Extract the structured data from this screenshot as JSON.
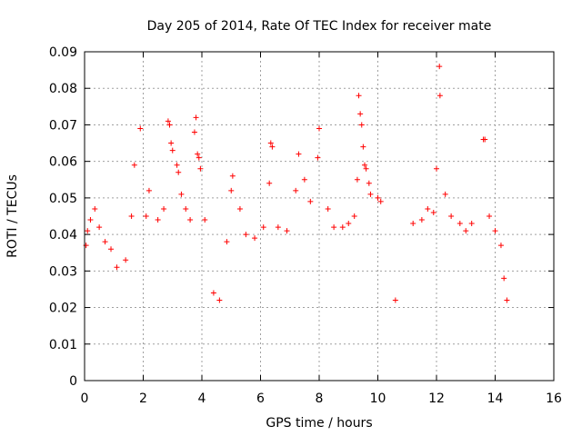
{
  "chart_data": {
    "type": "scatter",
    "title": "Day 205 of 2014, Rate Of TEC Index for receiver mate",
    "xlabel": "GPS time / hours",
    "ylabel": "ROTI / TECUs",
    "xlim": [
      0,
      16
    ],
    "ylim": [
      0,
      0.09
    ],
    "x_ticks": [
      0,
      2,
      4,
      6,
      8,
      10,
      12,
      14,
      16
    ],
    "x_tick_labels": [
      "0",
      "2",
      "4",
      "6",
      "8",
      "10",
      "12",
      "14",
      "16"
    ],
    "y_ticks": [
      0,
      0.01,
      0.02,
      0.03,
      0.04,
      0.05,
      0.06,
      0.07,
      0.08,
      0.09
    ],
    "y_tick_labels": [
      "0",
      "0.01",
      "0.02",
      "0.03",
      "0.04",
      "0.05",
      "0.06",
      "0.07",
      "0.08",
      "0.09"
    ],
    "grid": true,
    "marker": "+",
    "color": "#ff0000",
    "series": [
      {
        "name": "ROTI",
        "points": [
          [
            0.05,
            0.037
          ],
          [
            0.1,
            0.041
          ],
          [
            0.2,
            0.044
          ],
          [
            0.35,
            0.047
          ],
          [
            0.5,
            0.042
          ],
          [
            0.7,
            0.038
          ],
          [
            0.9,
            0.036
          ],
          [
            1.1,
            0.031
          ],
          [
            1.4,
            0.033
          ],
          [
            1.6,
            0.045
          ],
          [
            1.7,
            0.059
          ],
          [
            1.9,
            0.069
          ],
          [
            2.1,
            0.045
          ],
          [
            2.2,
            0.052
          ],
          [
            2.5,
            0.044
          ],
          [
            2.7,
            0.047
          ],
          [
            2.85,
            0.071
          ],
          [
            2.9,
            0.07
          ],
          [
            2.95,
            0.065
          ],
          [
            3.0,
            0.063
          ],
          [
            3.15,
            0.059
          ],
          [
            3.2,
            0.057
          ],
          [
            3.3,
            0.051
          ],
          [
            3.45,
            0.047
          ],
          [
            3.6,
            0.044
          ],
          [
            3.75,
            0.068
          ],
          [
            3.8,
            0.072
          ],
          [
            3.85,
            0.062
          ],
          [
            3.9,
            0.061
          ],
          [
            3.95,
            0.058
          ],
          [
            4.1,
            0.044
          ],
          [
            4.4,
            0.024
          ],
          [
            4.6,
            0.022
          ],
          [
            4.85,
            0.038
          ],
          [
            5.0,
            0.052
          ],
          [
            5.05,
            0.056
          ],
          [
            5.3,
            0.047
          ],
          [
            5.5,
            0.04
          ],
          [
            5.8,
            0.039
          ],
          [
            6.1,
            0.042
          ],
          [
            6.3,
            0.054
          ],
          [
            6.35,
            0.065
          ],
          [
            6.4,
            0.064
          ],
          [
            6.6,
            0.042
          ],
          [
            6.9,
            0.041
          ],
          [
            7.2,
            0.052
          ],
          [
            7.3,
            0.062
          ],
          [
            7.5,
            0.055
          ],
          [
            7.7,
            0.049
          ],
          [
            7.95,
            0.061
          ],
          [
            8.0,
            0.069
          ],
          [
            8.3,
            0.047
          ],
          [
            8.5,
            0.042
          ],
          [
            8.8,
            0.042
          ],
          [
            9.0,
            0.043
          ],
          [
            9.2,
            0.045
          ],
          [
            9.3,
            0.055
          ],
          [
            9.35,
            0.078
          ],
          [
            9.4,
            0.073
          ],
          [
            9.45,
            0.07
          ],
          [
            9.5,
            0.064
          ],
          [
            9.55,
            0.059
          ],
          [
            9.6,
            0.058
          ],
          [
            9.7,
            0.054
          ],
          [
            9.75,
            0.051
          ],
          [
            10.0,
            0.05
          ],
          [
            10.1,
            0.049
          ],
          [
            10.6,
            0.022
          ],
          [
            11.2,
            0.043
          ],
          [
            11.5,
            0.044
          ],
          [
            11.7,
            0.047
          ],
          [
            11.9,
            0.046
          ],
          [
            12.0,
            0.058
          ],
          [
            12.1,
            0.086
          ],
          [
            12.12,
            0.078
          ],
          [
            12.3,
            0.051
          ],
          [
            12.5,
            0.045
          ],
          [
            12.8,
            0.043
          ],
          [
            13.0,
            0.041
          ],
          [
            13.2,
            0.043
          ],
          [
            13.6,
            0.066
          ],
          [
            13.65,
            0.066
          ],
          [
            13.8,
            0.045
          ],
          [
            14.0,
            0.041
          ],
          [
            14.2,
            0.037
          ],
          [
            14.3,
            0.028
          ],
          [
            14.4,
            0.022
          ]
        ]
      }
    ]
  }
}
